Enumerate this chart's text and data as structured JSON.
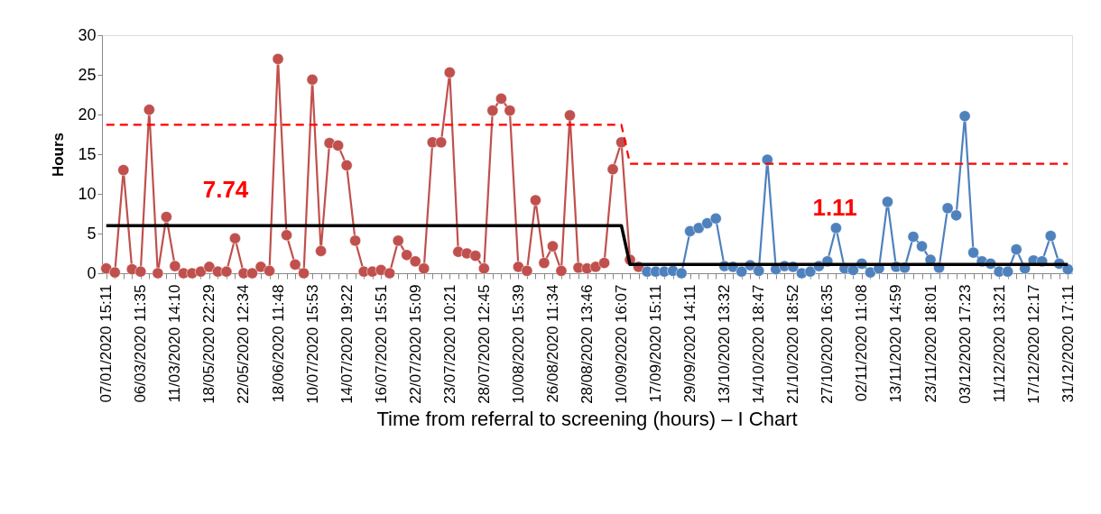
{
  "chart_data": {
    "type": "line",
    "title": "Time from referral to screening (hours) – I Chart",
    "ylabel": "Hours",
    "categories": [
      "07/01/2020 15:11",
      null,
      null,
      null,
      "06/03/2020 11:35",
      null,
      null,
      null,
      "11/03/2020 14:10",
      null,
      null,
      null,
      "18/05/2020 22:29",
      null,
      null,
      null,
      "22/05/2020 12:34",
      null,
      null,
      null,
      "18/06/2020 11:48",
      null,
      null,
      null,
      "10/07/2020 15:53",
      null,
      null,
      null,
      "14/07/2020 19:22",
      null,
      null,
      null,
      "16/07/2020 15:51",
      null,
      null,
      null,
      "22/07/2020 15:09",
      null,
      null,
      null,
      "23/07/2020 10:21",
      null,
      null,
      null,
      "28/07/2020 12:45",
      null,
      null,
      null,
      "10/08/2020 15:39",
      null,
      null,
      null,
      "26/08/2020 11:34",
      null,
      null,
      null,
      "28/08/2020 13:46",
      null,
      null,
      null,
      "10/09/2020 16:07",
      null,
      null,
      null,
      "17/09/2020 15:11",
      null,
      null,
      null,
      "29/09/2020 14:11",
      null,
      null,
      null,
      "13/10/2020 13:32",
      null,
      null,
      null,
      "14/10/2020 18:47",
      null,
      null,
      null,
      "21/10/2020 18:52",
      null,
      null,
      null,
      "27/10/2020 16:35",
      null,
      null,
      null,
      "02/11/2020 11:08",
      null,
      null,
      null,
      "13/11/2020 14:59",
      null,
      null,
      null,
      "23/11/2020 18:01",
      null,
      null,
      null,
      "03/12/2020 17:23",
      null,
      null,
      null,
      "11/12/2020 13:21",
      null,
      null,
      null,
      "17/12/2020 12:17",
      null,
      null,
      null,
      "31/12/2020 17:11"
    ],
    "series": [
      {
        "color": "#c0504d",
        "values": [
          0.6,
          0.1,
          13.0,
          0.5,
          0.2,
          20.6,
          0,
          7.1,
          0.9,
          0,
          0,
          0.2,
          0.8,
          0.2,
          0.2,
          4.4,
          0,
          0,
          0.8,
          0.3,
          27.0,
          4.8,
          1.1,
          0,
          24.4,
          2.8,
          16.4,
          16.1,
          13.6,
          4.1,
          0.2,
          0.2,
          0.4,
          0,
          4.1,
          2.3,
          1.5,
          0.6,
          16.5,
          16.5,
          25.3,
          2.7,
          2.5,
          2.2,
          0.6,
          20.5,
          22.0,
          20.5,
          0.8,
          0.3,
          9.2,
          1.3,
          3.4,
          0.3,
          19.9,
          0.7,
          0.6,
          0.8,
          1.3,
          13.1,
          16.5,
          1.7,
          0.8,
          null,
          null,
          null,
          null,
          null,
          null,
          null,
          null,
          null,
          null,
          null,
          null,
          null,
          null,
          null,
          null,
          null,
          null,
          null,
          null,
          null,
          null,
          null,
          null,
          null,
          null,
          null,
          null,
          null,
          null,
          null,
          null,
          null,
          null,
          null,
          null,
          null,
          null,
          null,
          null,
          null,
          null,
          null,
          null,
          null,
          null,
          null,
          null,
          null,
          null
        ]
      },
      {
        "color": "#4f81bd",
        "values": [
          null,
          null,
          null,
          null,
          null,
          null,
          null,
          null,
          null,
          null,
          null,
          null,
          null,
          null,
          null,
          null,
          null,
          null,
          null,
          null,
          null,
          null,
          null,
          null,
          null,
          null,
          null,
          null,
          null,
          null,
          null,
          null,
          null,
          null,
          null,
          null,
          null,
          null,
          null,
          null,
          null,
          null,
          null,
          null,
          null,
          null,
          null,
          null,
          null,
          null,
          null,
          null,
          null,
          null,
          null,
          null,
          null,
          null,
          null,
          null,
          null,
          null,
          null,
          0.2,
          0.2,
          0.2,
          0.3,
          0,
          5.3,
          5.7,
          6.3,
          6.9,
          0.9,
          0.8,
          0.2,
          1.0,
          0.3,
          14.3,
          0.5,
          0.9,
          0.8,
          0,
          0.2,
          0.9,
          1.5,
          5.7,
          0.6,
          0.4,
          1.2,
          0.1,
          0.6,
          9.0,
          0.8,
          0.7,
          4.6,
          3.4,
          1.7,
          0.7,
          8.2,
          7.3,
          19.8,
          2.6,
          1.5,
          1.2,
          0.2,
          0.2,
          3.0,
          0.6,
          1.6,
          1.5,
          4.7,
          1.2,
          0.5
        ]
      },
      {
        "color": "#000000",
        "marker": "none",
        "values": [
          6.0,
          6.0,
          6.0,
          6.0,
          6.0,
          6.0,
          6.0,
          6.0,
          6.0,
          6.0,
          6.0,
          6.0,
          6.0,
          6.0,
          6.0,
          6.0,
          6.0,
          6.0,
          6.0,
          6.0,
          6.0,
          6.0,
          6.0,
          6.0,
          6.0,
          6.0,
          6.0,
          6.0,
          6.0,
          6.0,
          6.0,
          6.0,
          6.0,
          6.0,
          6.0,
          6.0,
          6.0,
          6.0,
          6.0,
          6.0,
          6.0,
          6.0,
          6.0,
          6.0,
          6.0,
          6.0,
          6.0,
          6.0,
          6.0,
          6.0,
          6.0,
          6.0,
          6.0,
          6.0,
          6.0,
          6.0,
          6.0,
          6.0,
          6.0,
          6.0,
          6.0,
          1.1,
          1.1,
          1.1,
          1.1,
          1.1,
          1.1,
          1.1,
          1.1,
          1.1,
          1.1,
          1.1,
          1.1,
          1.1,
          1.1,
          1.1,
          1.1,
          1.1,
          1.1,
          1.1,
          1.1,
          1.1,
          1.1,
          1.1,
          1.1,
          1.1,
          1.1,
          1.1,
          1.1,
          1.1,
          1.1,
          1.1,
          1.1,
          1.1,
          1.1,
          1.1,
          1.1,
          1.1,
          1.1,
          1.1,
          1.1,
          1.1,
          1.1,
          1.1,
          1.1,
          1.1,
          1.1,
          1.1,
          1.1,
          1.1,
          1.1,
          1.1,
          1.1
        ]
      },
      {
        "color": "#ff0000",
        "marker": "none",
        "line_style": "dashed",
        "values": [
          18.7,
          18.7,
          18.7,
          18.7,
          18.7,
          18.7,
          18.7,
          18.7,
          18.7,
          18.7,
          18.7,
          18.7,
          18.7,
          18.7,
          18.7,
          18.7,
          18.7,
          18.7,
          18.7,
          18.7,
          18.7,
          18.7,
          18.7,
          18.7,
          18.7,
          18.7,
          18.7,
          18.7,
          18.7,
          18.7,
          18.7,
          18.7,
          18.7,
          18.7,
          18.7,
          18.7,
          18.7,
          18.7,
          18.7,
          18.7,
          18.7,
          18.7,
          18.7,
          18.7,
          18.7,
          18.7,
          18.7,
          18.7,
          18.7,
          18.7,
          18.7,
          18.7,
          18.7,
          18.7,
          18.7,
          18.7,
          18.7,
          18.7,
          18.7,
          18.7,
          18.7,
          13.8,
          13.8,
          13.8,
          13.8,
          13.8,
          13.8,
          13.8,
          13.8,
          13.8,
          13.8,
          13.8,
          13.8,
          13.8,
          13.8,
          13.8,
          13.8,
          13.8,
          13.8,
          13.8,
          13.8,
          13.8,
          13.8,
          13.8,
          13.8,
          13.8,
          13.8,
          13.8,
          13.8,
          13.8,
          13.8,
          13.8,
          13.8,
          13.8,
          13.8,
          13.8,
          13.8,
          13.8,
          13.8,
          13.8,
          13.8,
          13.8,
          13.8,
          13.8,
          13.8,
          13.8,
          13.8,
          13.8,
          13.8,
          13.8,
          13.8,
          13.8,
          13.8
        ]
      }
    ],
    "annotations": [
      "7.74",
      "1.11"
    ],
    "ylim": [
      0,
      30
    ],
    "yticks": [
      0,
      5,
      10,
      15,
      20,
      25,
      30
    ],
    "grid": false,
    "marker": "circle",
    "line_style": "solid"
  }
}
